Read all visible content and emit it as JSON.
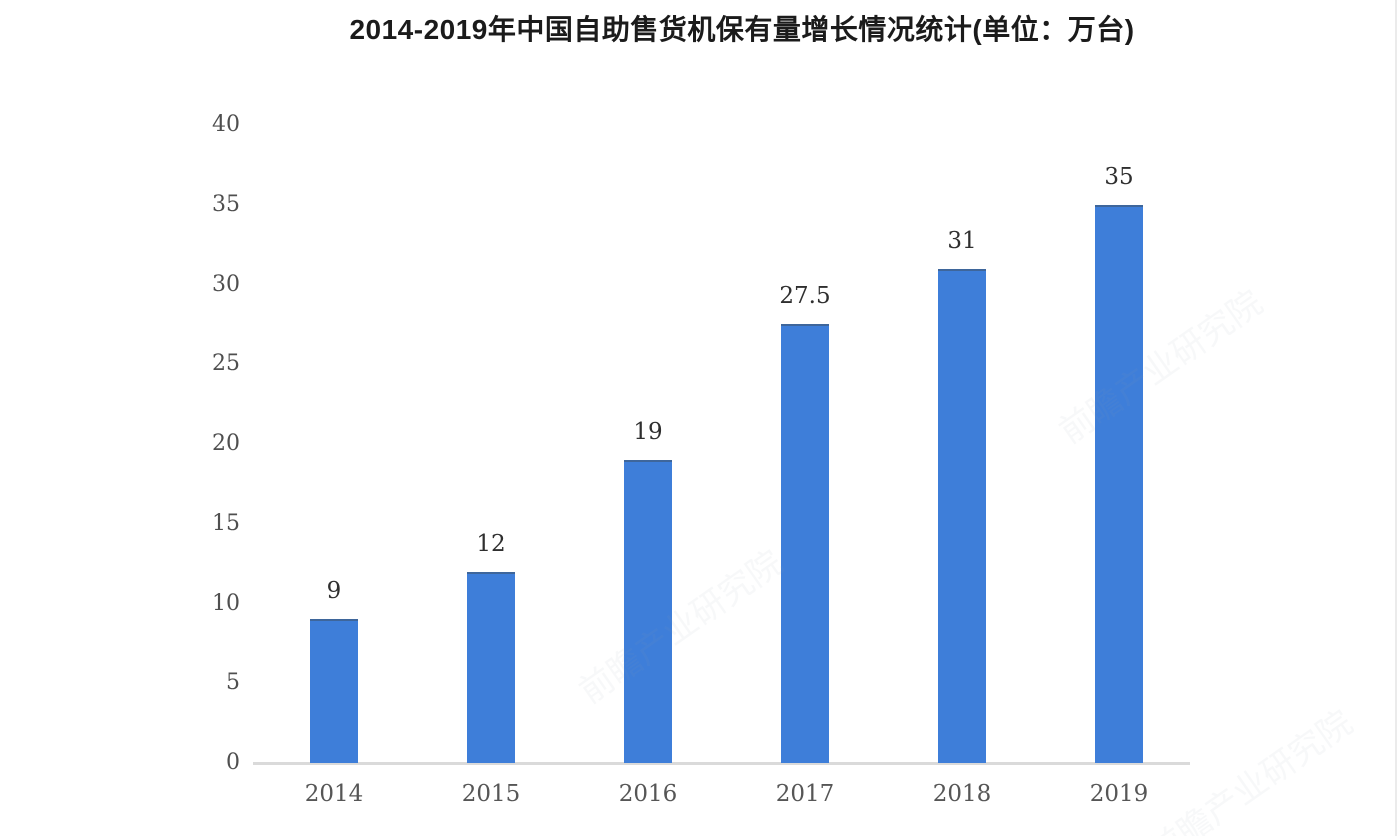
{
  "page": {
    "background_color": "#ffffff"
  },
  "chart_data": {
    "type": "bar",
    "title": "2014-2019年中国自助售货机保有量增长情况统计(单位：万台)",
    "categories": [
      "2014",
      "2015",
      "2016",
      "2017",
      "2018",
      "2019"
    ],
    "values": [
      9,
      12,
      19,
      27.5,
      31,
      35
    ],
    "value_labels": [
      "9",
      "12",
      "19",
      "27.5",
      "31",
      "35"
    ],
    "series_name": "自助售货机保有量",
    "unit": "万台",
    "xlabel": "",
    "ylabel": "",
    "ylim": [
      0,
      40
    ],
    "y_ticks": [
      0,
      5,
      10,
      15,
      20,
      25,
      30,
      35,
      40
    ],
    "grid": false,
    "legend_visible": false,
    "colors": {
      "bar": "#3e7ed9",
      "title_text": "#1b1b1b",
      "tick_text": "#4f4f4f",
      "value_text": "#2f2f2f",
      "axis_line": "#dadada"
    }
  },
  "watermark": {
    "text": "前瞻产业研究院"
  }
}
